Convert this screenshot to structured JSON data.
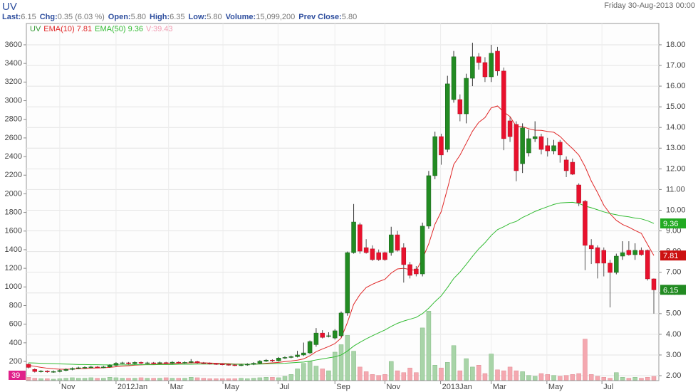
{
  "chart_data": {
    "type": "candlestick",
    "title": "UV",
    "date": "Friday 30-Aug-2013 00:00",
    "stats": [
      {
        "label": "Last:",
        "value": "6.15"
      },
      {
        "label": "Chg:",
        "value": "0.35 (6.03 %)"
      },
      {
        "label": "Open:",
        "value": "5.80"
      },
      {
        "label": "High:",
        "value": "6.35"
      },
      {
        "label": "Low:",
        "value": "5.80"
      },
      {
        "label": "Volume:",
        "value": "15,099,200"
      },
      {
        "label": "Prev Close:",
        "value": "5.80"
      }
    ],
    "xtick_labels": [
      "Nov",
      "2012Jan",
      "Mar",
      "May",
      "Jul",
      "Sep",
      "Nov",
      "2013Jan",
      "Mar",
      "May",
      "Jul"
    ],
    "ylim": [
      1.76,
      19.03
    ],
    "yticks": [
      {
        "value": 2,
        "label": "2.00"
      },
      {
        "value": 3,
        "label": "3.00"
      },
      {
        "value": 4,
        "label": "4.00"
      },
      {
        "value": 5,
        "label": "5.00"
      },
      {
        "value": 6,
        "label": "6.00"
      },
      {
        "value": 7,
        "label": "7.00"
      },
      {
        "value": 8,
        "label": "8.00"
      },
      {
        "value": 9,
        "label": "9.00"
      },
      {
        "value": 10,
        "label": "10.00"
      },
      {
        "value": 11,
        "label": "11.00"
      },
      {
        "value": 12,
        "label": "12.00"
      },
      {
        "value": 13,
        "label": "13.00"
      },
      {
        "value": 14,
        "label": "14.00"
      },
      {
        "value": 15,
        "label": "15.00"
      },
      {
        "value": 16,
        "label": "16.00"
      },
      {
        "value": 17,
        "label": "17.00"
      },
      {
        "value": 18,
        "label": "18.00"
      }
    ],
    "y2lim": [
      -6,
      3829
    ],
    "y2ticks": [
      200,
      400,
      600,
      800,
      1000,
      1200,
      1400,
      1600,
      1800,
      2000,
      2200,
      2400,
      2600,
      2800,
      3000,
      3200,
      3400,
      3600
    ],
    "grid": true,
    "series": [
      {
        "name": "UV",
        "color": "#339933",
        "up_color": "#228b22",
        "down_color": "#e8112d",
        "ohlc": [
          [
            2.55,
            2.6,
            2.35,
            2.4
          ],
          [
            2.3,
            2.35,
            2.15,
            2.2
          ],
          [
            2.2,
            2.27,
            2.15,
            2.22
          ],
          [
            2.22,
            2.26,
            2.14,
            2.18
          ],
          [
            2.18,
            2.25,
            2.14,
            2.2
          ],
          [
            2.2,
            2.3,
            2.16,
            2.25
          ],
          [
            2.25,
            2.35,
            2.21,
            2.3
          ],
          [
            2.3,
            2.4,
            2.26,
            2.35
          ],
          [
            2.35,
            2.43,
            2.31,
            2.38
          ],
          [
            2.38,
            2.45,
            2.34,
            2.4
          ],
          [
            2.4,
            2.47,
            2.36,
            2.42
          ],
          [
            2.42,
            2.46,
            2.36,
            2.4
          ],
          [
            2.4,
            2.47,
            2.36,
            2.42
          ],
          [
            2.42,
            2.55,
            2.38,
            2.5
          ],
          [
            2.5,
            2.65,
            2.46,
            2.6
          ],
          [
            2.6,
            2.67,
            2.56,
            2.62
          ],
          [
            2.62,
            2.66,
            2.54,
            2.58
          ],
          [
            2.58,
            2.69,
            2.54,
            2.64
          ],
          [
            2.64,
            2.68,
            2.56,
            2.6
          ],
          [
            2.6,
            2.67,
            2.56,
            2.62
          ],
          [
            2.62,
            2.66,
            2.56,
            2.6
          ],
          [
            2.6,
            2.68,
            2.56,
            2.63
          ],
          [
            2.63,
            2.67,
            2.56,
            2.6
          ],
          [
            2.6,
            2.7,
            2.56,
            2.65
          ],
          [
            2.65,
            2.69,
            2.58,
            2.62
          ],
          [
            2.62,
            2.69,
            2.58,
            2.64
          ],
          [
            2.64,
            2.8,
            2.6,
            2.68
          ],
          [
            2.68,
            2.72,
            2.58,
            2.62
          ],
          [
            2.62,
            2.66,
            2.56,
            2.6
          ],
          [
            2.6,
            2.64,
            2.54,
            2.58
          ],
          [
            2.58,
            2.62,
            2.52,
            2.56
          ],
          [
            2.56,
            2.6,
            2.5,
            2.54
          ],
          [
            2.54,
            2.58,
            2.48,
            2.52
          ],
          [
            2.52,
            2.56,
            2.46,
            2.5
          ],
          [
            2.5,
            2.57,
            2.46,
            2.52
          ],
          [
            2.52,
            2.6,
            2.48,
            2.55
          ],
          [
            2.55,
            2.65,
            2.51,
            2.6
          ],
          [
            2.6,
            2.75,
            2.56,
            2.7
          ],
          [
            2.7,
            2.8,
            2.66,
            2.75
          ],
          [
            2.75,
            2.79,
            2.66,
            2.72
          ],
          [
            2.72,
            2.9,
            2.68,
            2.85
          ],
          [
            2.85,
            2.93,
            2.81,
            2.88
          ],
          [
            2.88,
            2.97,
            2.84,
            2.92
          ],
          [
            2.92,
            3.2,
            2.88,
            3.0
          ],
          [
            3.0,
            3.6,
            2.95,
            3.1
          ],
          [
            3.1,
            3.7,
            3.05,
            3.65
          ],
          [
            3.5,
            4.3,
            3.4,
            4.06
          ],
          [
            4.06,
            4.2,
            3.8,
            3.85
          ],
          [
            3.9,
            4.1,
            3.85,
            3.93
          ],
          [
            3.82,
            4.25,
            3.75,
            4.17
          ],
          [
            3.93,
            5.1,
            3.85,
            5.03
          ],
          [
            5.03,
            8.0,
            4.9,
            7.95
          ],
          [
            7.95,
            10.3,
            7.9,
            9.43
          ],
          [
            9.3,
            9.4,
            7.9,
            8.02
          ],
          [
            8.19,
            8.6,
            7.9,
            7.95
          ],
          [
            8.13,
            8.3,
            7.55,
            7.61
          ],
          [
            7.95,
            8.1,
            7.55,
            7.61
          ],
          [
            7.95,
            8.0,
            7.55,
            7.61
          ],
          [
            7.95,
            9.2,
            7.8,
            8.81
          ],
          [
            8.81,
            9.0,
            8.0,
            8.06
          ],
          [
            8.19,
            8.4,
            6.5,
            7.37
          ],
          [
            7.37,
            7.5,
            6.7,
            6.85
          ],
          [
            7.16,
            7.3,
            6.8,
            6.92
          ],
          [
            6.92,
            9.4,
            6.8,
            9.23
          ],
          [
            9.23,
            11.9,
            9.1,
            11.67
          ],
          [
            11.67,
            13.8,
            11.5,
            13.56
          ],
          [
            13.56,
            13.7,
            12.2,
            12.67
          ],
          [
            12.94,
            16.5,
            12.8,
            16.11
          ],
          [
            15.35,
            17.7,
            15.2,
            17.42
          ],
          [
            15.35,
            15.6,
            14.3,
            14.66
          ],
          [
            14.66,
            16.6,
            14.2,
            16.38
          ],
          [
            16.38,
            18.1,
            16.0,
            17.42
          ],
          [
            17.42,
            17.6,
            16.8,
            17.14
          ],
          [
            17.14,
            17.4,
            16.2,
            16.45
          ],
          [
            16.45,
            18.0,
            16.2,
            17.59
          ],
          [
            17.69,
            17.9,
            16.5,
            16.73
          ],
          [
            16.73,
            16.9,
            12.9,
            13.46
          ],
          [
            14.32,
            14.5,
            13.3,
            13.56
          ],
          [
            14.15,
            14.3,
            11.4,
            11.91
          ],
          [
            12.25,
            14.2,
            11.8,
            13.98
          ],
          [
            12.77,
            13.9,
            12.6,
            13.46
          ],
          [
            13.46,
            14.3,
            13.3,
            13.56
          ],
          [
            13.56,
            13.7,
            12.7,
            12.94
          ],
          [
            13.12,
            13.5,
            12.6,
            12.87
          ],
          [
            12.87,
            13.4,
            12.7,
            13.12
          ],
          [
            13.29,
            13.4,
            12.3,
            12.67
          ],
          [
            12.43,
            12.6,
            11.6,
            11.91
          ],
          [
            12.32,
            12.5,
            11.7,
            11.74
          ],
          [
            11.22,
            11.3,
            10.2,
            10.36
          ],
          [
            10.43,
            10.5,
            7.1,
            8.3
          ],
          [
            8.3,
            8.6,
            7.4,
            8.13
          ],
          [
            8.19,
            8.3,
            6.7,
            7.44
          ],
          [
            8.06,
            8.2,
            6.8,
            7.44
          ],
          [
            7.44,
            7.6,
            5.3,
            6.99
          ],
          [
            6.99,
            7.9,
            6.9,
            7.78
          ],
          [
            7.78,
            8.5,
            7.6,
            7.95
          ],
          [
            8.06,
            8.5,
            7.8,
            7.85
          ],
          [
            7.85,
            8.4,
            7.6,
            8.06
          ],
          [
            8.06,
            8.2,
            7.8,
            7.85
          ],
          [
            8.06,
            8.1,
            6.6,
            6.68
          ],
          [
            6.68,
            6.7,
            5.0,
            6.15
          ]
        ]
      }
    ],
    "lines": [
      {
        "name": "EMA(10) 7.81",
        "color": "#e02828",
        "tag_color": "#cc1111",
        "values": [
          2.5,
          2.45,
          2.4,
          2.36,
          2.33,
          2.31,
          2.31,
          2.32,
          2.33,
          2.34,
          2.36,
          2.37,
          2.38,
          2.4,
          2.43,
          2.46,
          2.48,
          2.51,
          2.52,
          2.54,
          2.55,
          2.57,
          2.58,
          2.59,
          2.6,
          2.61,
          2.62,
          2.62,
          2.62,
          2.61,
          2.6,
          2.59,
          2.58,
          2.56,
          2.56,
          2.55,
          2.56,
          2.57,
          2.6,
          2.62,
          2.64,
          2.68,
          2.71,
          2.75,
          2.81,
          2.96,
          3.16,
          3.29,
          3.41,
          3.55,
          3.82,
          4.57,
          5.45,
          5.92,
          6.26,
          6.42,
          6.55,
          6.66,
          6.96,
          7.16,
          7.19,
          7.13,
          7.09,
          7.64,
          8.37,
          9.32,
          9.93,
          11.05,
          12.21,
          12.66,
          13.24,
          13.82,
          14.25,
          14.48,
          14.95,
          15.04,
          14.75,
          14.53,
          14.05,
          14.04,
          13.94,
          13.87,
          13.86,
          13.81,
          13.77,
          13.57,
          13.26,
          12.98,
          12.67,
          12.11,
          11.41,
          10.85,
          10.24,
          9.83,
          9.51,
          9.31,
          9.18,
          9.02,
          8.88,
          8.34,
          7.81
        ]
      },
      {
        "name": "EMA(50) 9.36",
        "color": "#33bb33",
        "tag_color": "#22aa22",
        "values": [
          2.62,
          2.61,
          2.6,
          2.59,
          2.58,
          2.57,
          2.56,
          2.55,
          2.54,
          2.54,
          2.53,
          2.53,
          2.52,
          2.52,
          2.52,
          2.52,
          2.52,
          2.53,
          2.53,
          2.53,
          2.53,
          2.54,
          2.54,
          2.54,
          2.55,
          2.55,
          2.55,
          2.56,
          2.56,
          2.56,
          2.56,
          2.56,
          2.56,
          2.55,
          2.55,
          2.55,
          2.55,
          2.56,
          2.57,
          2.58,
          2.59,
          2.6,
          2.62,
          2.64,
          2.66,
          2.7,
          2.76,
          2.81,
          2.86,
          2.91,
          3.0,
          3.19,
          3.43,
          3.61,
          3.78,
          3.93,
          4.07,
          4.21,
          4.38,
          4.53,
          4.64,
          4.73,
          4.82,
          5.0,
          5.26,
          5.58,
          5.86,
          6.26,
          6.7,
          7.01,
          7.38,
          7.77,
          8.13,
          8.43,
          8.78,
          9.06,
          9.2,
          9.36,
          9.46,
          9.65,
          9.79,
          9.94,
          10.06,
          10.17,
          10.28,
          10.35,
          10.37,
          10.38,
          10.33,
          10.2,
          10.12,
          10.02,
          9.92,
          9.84,
          9.78,
          9.72,
          9.68,
          9.62,
          9.58,
          9.49,
          9.36
        ]
      }
    ],
    "volume": {
      "name": "V:39.43",
      "color": "#f09ab0",
      "axis": "y2",
      "up_color": "#a8d4a8",
      "down_color": "#f4a8b0",
      "last_label": "39",
      "tag_color": "#e0208a",
      "values": [
        30,
        20,
        15,
        15,
        10,
        15,
        20,
        25,
        20,
        20,
        25,
        20,
        20,
        30,
        25,
        20,
        20,
        20,
        25,
        20,
        20,
        20,
        25,
        20,
        20,
        20,
        30,
        25,
        20,
        15,
        15,
        15,
        15,
        15,
        20,
        15,
        20,
        25,
        30,
        30,
        25,
        40,
        60,
        120,
        180,
        200,
        150,
        120,
        100,
        300,
        380,
        480,
        310,
        140,
        90,
        60,
        50,
        60,
        200,
        100,
        80,
        130,
        80,
        560,
        740,
        160,
        130,
        190,
        370,
        100,
        230,
        140,
        160,
        70,
        280,
        110,
        100,
        140,
        100,
        90,
        50,
        40,
        70,
        60,
        50,
        40,
        50,
        60,
        70,
        440,
        60,
        40,
        30,
        20,
        80,
        30,
        20,
        30,
        20,
        30,
        39.43
      ]
    }
  }
}
